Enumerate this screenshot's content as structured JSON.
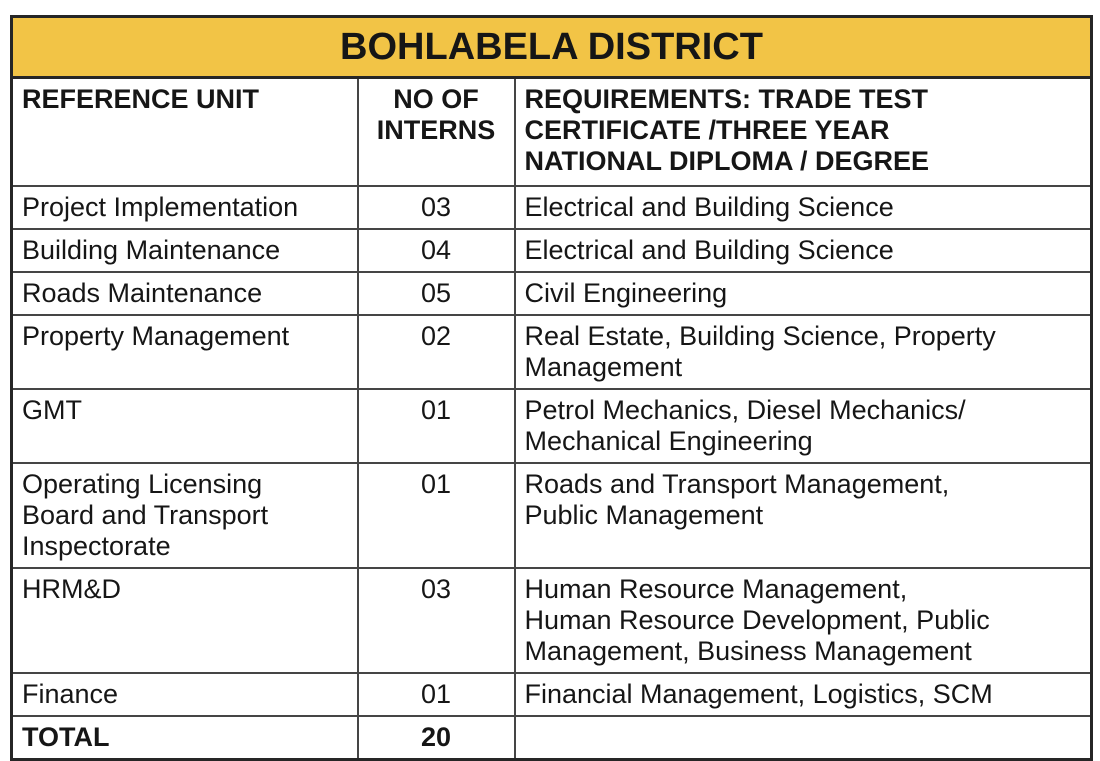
{
  "title": "BOHLABELA DISTRICT",
  "colors": {
    "banner_background": "#F2C446",
    "outer_border": "#262626",
    "inner_border": "#454545",
    "text": "#161616"
  },
  "table": {
    "columns": [
      {
        "label": "REFERENCE UNIT"
      },
      {
        "label": "NO OF\nINTERNS"
      },
      {
        "label": "REQUIREMENTS: TRADE TEST\nCERTIFICATE /THREE YEAR\nNATIONAL DIPLOMA / DEGREE"
      }
    ],
    "rows": [
      {
        "unit": "Project Implementation",
        "interns": "03",
        "requirements": "Electrical and Building Science"
      },
      {
        "unit": "Building Maintenance",
        "interns": "04",
        "requirements": "Electrical and Building Science"
      },
      {
        "unit": "Roads Maintenance",
        "interns": "05",
        "requirements": "Civil Engineering"
      },
      {
        "unit": "Property Management",
        "interns": "02",
        "requirements": "Real Estate, Building Science, Property\nManagement"
      },
      {
        "unit": "GMT",
        "interns": "01",
        "requirements": "Petrol Mechanics, Diesel Mechanics/\nMechanical Engineering"
      },
      {
        "unit": "Operating Licensing\nBoard and Transport\nInspectorate",
        "interns": "01",
        "requirements": "Roads and Transport Management,\nPublic Management"
      },
      {
        "unit": "HRM&D",
        "interns": "03",
        "requirements": "Human Resource Management,\nHuman Resource Development, Public\nManagement, Business Management"
      },
      {
        "unit": "Finance",
        "interns": "01",
        "requirements": "Financial Management, Logistics, SCM"
      }
    ],
    "total": {
      "label": "TOTAL",
      "interns": "20",
      "requirements": ""
    }
  }
}
